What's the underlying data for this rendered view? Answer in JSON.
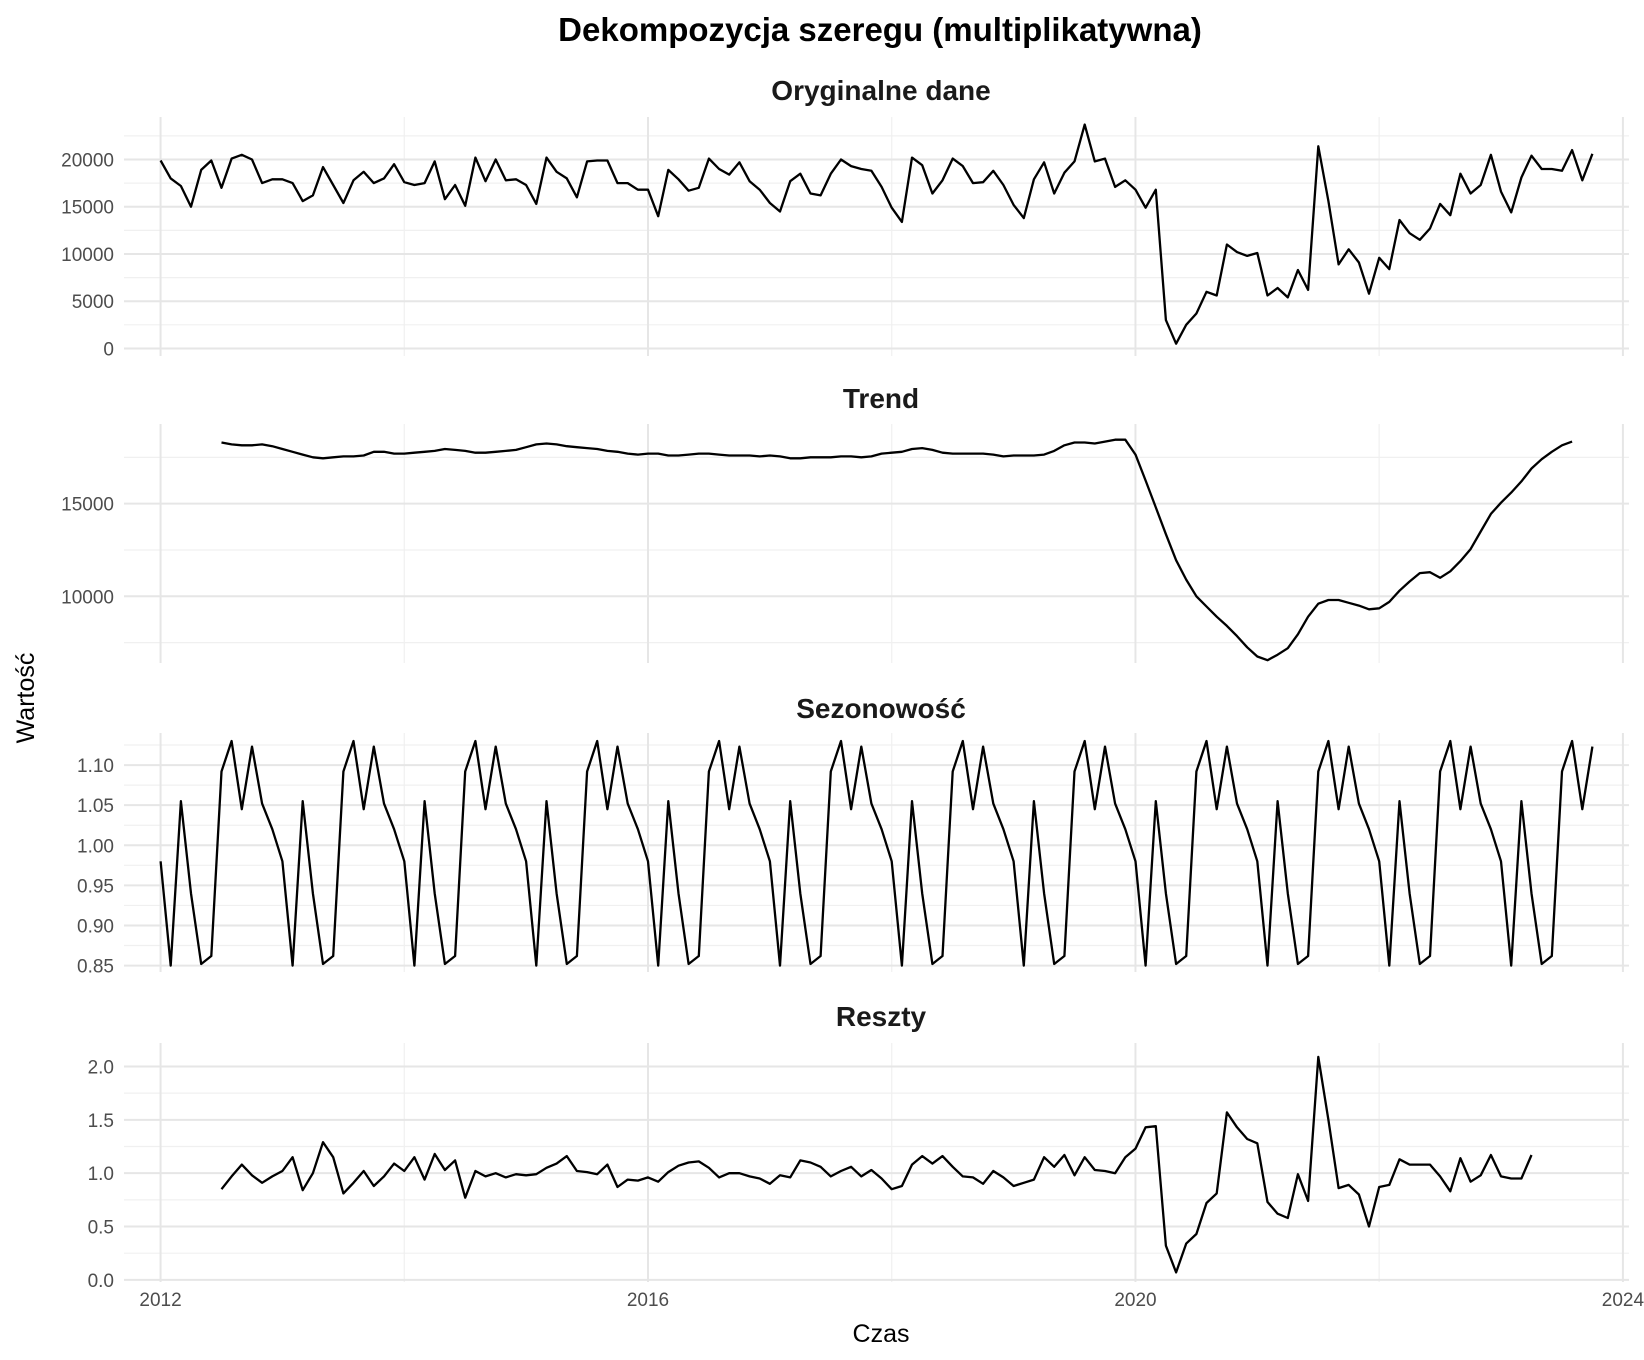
{
  "chart_data": {
    "type": "line",
    "title": "Dekompozycja szeregu (multiplikatywna)",
    "xlabel": "Czas",
    "ylabel": "Wartość",
    "x_start": "2012-01",
    "x_frequency": "monthly",
    "xlim": [
      2011.7,
      2024.05
    ],
    "x_ticks": [
      2012,
      2016,
      2020,
      2024
    ],
    "x_tick_labels": [
      "2012",
      "2016",
      "2020",
      "2024"
    ],
    "grid": true,
    "panels": [
      {
        "name": "Oryginalne dane",
        "ylim": [
          -800,
          24500
        ],
        "y_ticks": [
          0,
          5000,
          10000,
          15000,
          20000
        ],
        "y_tick_labels": [
          "0",
          "5000",
          "10000",
          "15000",
          "20000"
        ],
        "start_index": 0,
        "values": [
          19900,
          18000,
          17200,
          15000,
          18900,
          19900,
          17000,
          20100,
          20500,
          20000,
          17500,
          17900,
          17900,
          17500,
          15600,
          16200,
          19200,
          17300,
          15400,
          17800,
          18700,
          17500,
          18000,
          19500,
          17600,
          17300,
          17500,
          19800,
          15800,
          17300,
          15100,
          20200,
          17700,
          20000,
          17800,
          17900,
          17300,
          15300,
          20200,
          18700,
          18000,
          16000,
          19800,
          19900,
          19900,
          17500,
          17500,
          16800,
          16800,
          14000,
          18900,
          17900,
          16700,
          17000,
          20100,
          19000,
          18400,
          19700,
          17700,
          16800,
          15400,
          14500,
          17700,
          18500,
          16400,
          16200,
          18500,
          20000,
          19300,
          19000,
          18800,
          17100,
          14900,
          13400,
          20200,
          19400,
          16400,
          17800,
          20100,
          19300,
          17500,
          17600,
          18800,
          17300,
          15200,
          13800,
          17900,
          19700,
          16400,
          18600,
          19800,
          23700,
          19800,
          20100,
          17100,
          17800,
          16800,
          14900,
          16800,
          3000,
          500,
          2500,
          3700,
          6000,
          5600,
          11000,
          10200,
          9800,
          10100,
          5600,
          6400,
          5400,
          8300,
          6200,
          21400,
          15600,
          8900,
          10500,
          9100,
          5800,
          9600,
          8400,
          13600,
          12200,
          11500,
          12700,
          15300,
          14100,
          18500,
          16400,
          17300,
          20500,
          16600,
          14400,
          18100,
          20400,
          19000,
          19000,
          18800,
          21000,
          17800,
          20600
        ]
      },
      {
        "name": "Trend",
        "ylim": [
          6400,
          19300
        ],
        "y_ticks": [
          10000,
          15000
        ],
        "y_tick_labels": [
          "10000",
          "15000"
        ],
        "start_index": 6,
        "values": [
          18300,
          18200,
          18150,
          18150,
          18200,
          18100,
          17950,
          17800,
          17650,
          17500,
          17450,
          17500,
          17550,
          17550,
          17600,
          17800,
          17800,
          17700,
          17700,
          17750,
          17800,
          17850,
          17950,
          17900,
          17850,
          17750,
          17750,
          17800,
          17850,
          17900,
          18050,
          18200,
          18250,
          18200,
          18100,
          18050,
          18000,
          17950,
          17850,
          17800,
          17700,
          17650,
          17700,
          17700,
          17600,
          17600,
          17650,
          17700,
          17700,
          17650,
          17600,
          17600,
          17600,
          17550,
          17600,
          17550,
          17450,
          17450,
          17500,
          17500,
          17500,
          17550,
          17550,
          17500,
          17550,
          17700,
          17750,
          17800,
          17950,
          18000,
          17900,
          17750,
          17700,
          17700,
          17700,
          17700,
          17650,
          17550,
          17600,
          17600,
          17600,
          17650,
          17850,
          18150,
          18300,
          18300,
          18250,
          18350,
          18450,
          18450,
          17650,
          16250,
          14800,
          13350,
          11950,
          10900,
          10000,
          9450,
          8900,
          8400,
          7850,
          7250,
          6750,
          6550,
          6850,
          7200,
          7950,
          8900,
          9600,
          9800,
          9800,
          9650,
          9500,
          9300,
          9350,
          9700,
          10300,
          10800,
          11250,
          11300,
          11000,
          11350,
          11900,
          12550,
          13500,
          14450,
          15050,
          15600,
          16200,
          16900,
          17400,
          17800,
          18150,
          18350
        ]
      },
      {
        "name": "Sezonowość",
        "ylim": [
          0.842,
          1.14
        ],
        "y_ticks": [
          0.85,
          0.9,
          0.95,
          1.0,
          1.05,
          1.1
        ],
        "y_tick_labels": [
          "0.85",
          "0.90",
          "0.95",
          "1.00",
          "1.05",
          "1.10"
        ],
        "start_index": 0,
        "pattern": [
          0.98,
          0.85,
          1.055,
          0.94,
          0.852,
          0.862,
          1.092,
          1.13,
          1.045,
          1.123,
          1.052,
          1.02
        ]
      },
      {
        "name": "Reszty",
        "ylim": [
          -0.02,
          2.22
        ],
        "y_ticks": [
          0.0,
          0.5,
          1.0,
          1.5,
          2.0
        ],
        "y_tick_labels": [
          "0.0",
          "0.5",
          "1.0",
          "1.5",
          "2.0"
        ],
        "start_index": 6,
        "values": [
          0.85,
          0.97,
          1.08,
          0.98,
          0.91,
          0.97,
          1.02,
          1.15,
          0.84,
          1.0,
          1.29,
          1.15,
          0.81,
          0.91,
          1.02,
          0.88,
          0.97,
          1.09,
          1.02,
          1.15,
          0.94,
          1.18,
          1.03,
          1.12,
          0.77,
          1.02,
          0.97,
          1.0,
          0.96,
          0.99,
          0.98,
          0.99,
          1.05,
          1.09,
          1.16,
          1.02,
          1.01,
          0.99,
          1.08,
          0.87,
          0.94,
          0.93,
          0.96,
          0.92,
          1.01,
          1.07,
          1.1,
          1.11,
          1.05,
          0.96,
          1.0,
          1.0,
          0.97,
          0.95,
          0.9,
          0.98,
          0.96,
          1.12,
          1.1,
          1.06,
          0.97,
          1.02,
          1.06,
          0.97,
          1.03,
          0.95,
          0.85,
          0.88,
          1.08,
          1.16,
          1.09,
          1.16,
          1.06,
          0.97,
          0.96,
          0.9,
          1.02,
          0.96,
          0.88,
          0.91,
          0.94,
          1.15,
          1.06,
          1.17,
          0.98,
          1.15,
          1.03,
          1.02,
          1.0,
          1.15,
          1.23,
          1.43,
          1.44,
          0.32,
          0.07,
          0.34,
          0.43,
          0.72,
          0.81,
          1.57,
          1.43,
          1.32,
          1.28,
          0.73,
          0.62,
          0.58,
          0.99,
          0.74,
          2.09,
          1.5,
          0.86,
          0.89,
          0.8,
          0.5,
          0.87,
          0.89,
          1.13,
          1.08,
          1.08,
          1.08,
          0.97,
          0.83,
          1.14,
          0.92,
          0.98,
          1.17,
          0.97,
          0.95,
          0.95,
          1.17
        ]
      }
    ]
  }
}
